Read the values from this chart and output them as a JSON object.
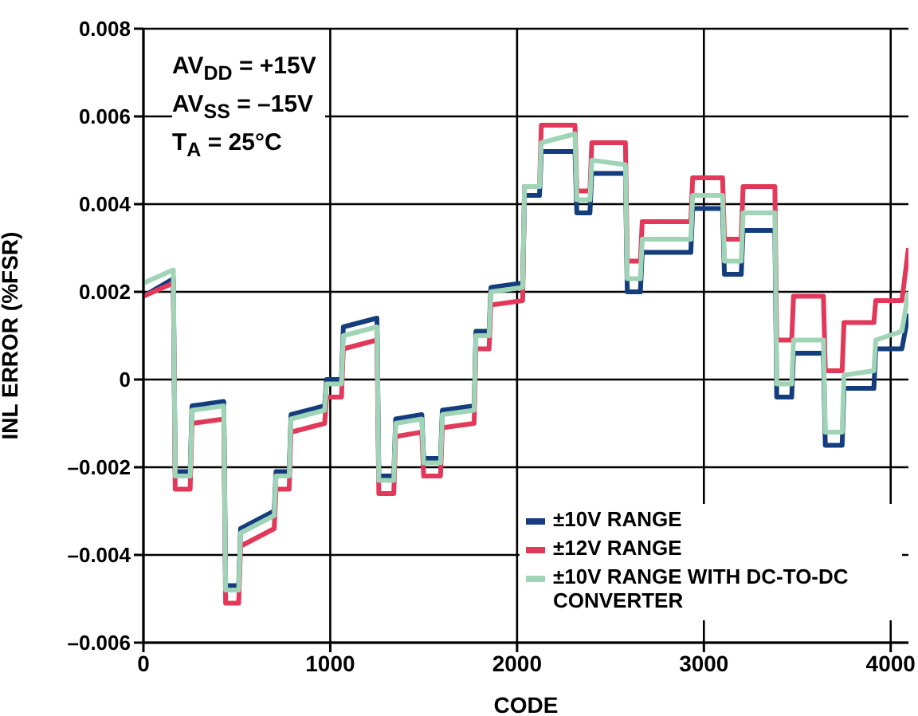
{
  "chart_data": {
    "type": "line",
    "xlabel": "CODE",
    "ylabel": "INL ERROR (%FSR)",
    "annotations": [
      "AV$_{DD}$ = +15V",
      "AV$_{SS}$ =  –15V",
      "T$_{A}$ = 25°C"
    ],
    "x": [
      0,
      160,
      170,
      250,
      260,
      430,
      440,
      510,
      520,
      700,
      710,
      780,
      790,
      970,
      980,
      1060,
      1070,
      1250,
      1260,
      1340,
      1350,
      1490,
      1500,
      1590,
      1600,
      1770,
      1780,
      1850,
      1860,
      2030,
      2040,
      2120,
      2130,
      2310,
      2320,
      2390,
      2400,
      2580,
      2590,
      2660,
      2670,
      2930,
      2940,
      3100,
      3110,
      3200,
      3210,
      3380,
      3390,
      3470,
      3480,
      3640,
      3650,
      3740,
      3750,
      3910,
      3920,
      4060,
      4095
    ],
    "series": [
      {
        "name": "±10V RANGE",
        "color": "#143d7e",
        "values": [
          0.0019,
          0.0023,
          -0.0021,
          -0.0021,
          -0.0006,
          -0.0005,
          -0.0047,
          -0.0047,
          -0.0034,
          -0.003,
          -0.0021,
          -0.0021,
          -0.0008,
          -0.0006,
          0,
          0,
          0.0012,
          0.0014,
          -0.0022,
          -0.0022,
          -0.0009,
          -0.0008,
          -0.0018,
          -0.0018,
          -0.0007,
          -0.0006,
          0.0011,
          0.0011,
          0.0021,
          0.0022,
          0.0042,
          0.0042,
          0.0052,
          0.0052,
          0.0038,
          0.0038,
          0.0047,
          0.0047,
          0.002,
          0.002,
          0.0029,
          0.0029,
          0.0039,
          0.0039,
          0.0024,
          0.0024,
          0.0034,
          0.0034,
          -0.0004,
          -0.0004,
          0.0006,
          0.0006,
          -0.0015,
          -0.0015,
          -0.0002,
          -0.0002,
          0.0007,
          0.0007,
          0.0015
        ]
      },
      {
        "name": "±12V RANGE",
        "color": "#e2385a",
        "values": [
          0.0019,
          0.0022,
          -0.0025,
          -0.0025,
          -0.001,
          -0.0009,
          -0.0051,
          -0.0051,
          -0.0038,
          -0.0034,
          -0.0025,
          -0.0025,
          -0.0012,
          -0.001,
          -0.0004,
          -0.0004,
          0.0007,
          0.0009,
          -0.0026,
          -0.0026,
          -0.0013,
          -0.0012,
          -0.0022,
          -0.0022,
          -0.0011,
          -0.001,
          0.0007,
          0.0007,
          0.0017,
          0.0018,
          0.0044,
          0.0044,
          0.0058,
          0.0058,
          0.0043,
          0.0043,
          0.0054,
          0.0054,
          0.0027,
          0.0027,
          0.0036,
          0.0036,
          0.0046,
          0.0046,
          0.0032,
          0.0032,
          0.0044,
          0.0044,
          0.0009,
          0.0009,
          0.0019,
          0.0019,
          0.0002,
          0.0002,
          0.0013,
          0.0013,
          0.0018,
          0.0018,
          0.003
        ]
      },
      {
        "name": "±10V RANGE WITH DC-TO-DC CONVERTER",
        "color": "#9fd4b6",
        "values": [
          0.0022,
          0.0025,
          -0.0022,
          -0.0022,
          -0.0007,
          -0.0006,
          -0.0048,
          -0.0048,
          -0.0035,
          -0.0031,
          -0.0022,
          -0.0022,
          -0.0009,
          -0.0007,
          -0.0001,
          -0.0001,
          0.001,
          0.0012,
          -0.0023,
          -0.0023,
          -0.001,
          -0.0009,
          -0.0019,
          -0.0019,
          -0.0008,
          -0.0007,
          0.001,
          0.001,
          0.002,
          0.0021,
          0.0044,
          0.0044,
          0.0054,
          0.0056,
          0.0041,
          0.0041,
          0.005,
          0.0049,
          0.0023,
          0.0023,
          0.0032,
          0.0032,
          0.0042,
          0.0042,
          0.0027,
          0.0027,
          0.0038,
          0.0038,
          -0.0001,
          -0.0001,
          0.0009,
          0.0009,
          -0.0012,
          -0.0012,
          0.0001,
          0.0002,
          0.0009,
          0.0011,
          0.002
        ]
      }
    ],
    "xlim": [
      0,
      4095
    ],
    "xticks": [
      0,
      1000,
      2000,
      3000,
      4000
    ],
    "ylim": [
      -0.006,
      0.008
    ],
    "yticks": [
      {
        "value": -0.006,
        "label": "–0.006"
      },
      {
        "value": -0.004,
        "label": "–0.004"
      },
      {
        "value": -0.002,
        "label": "–0.002"
      },
      0,
      0.002,
      0.004,
      0.006,
      0.008
    ],
    "grid": true,
    "legend": "bottom right"
  }
}
